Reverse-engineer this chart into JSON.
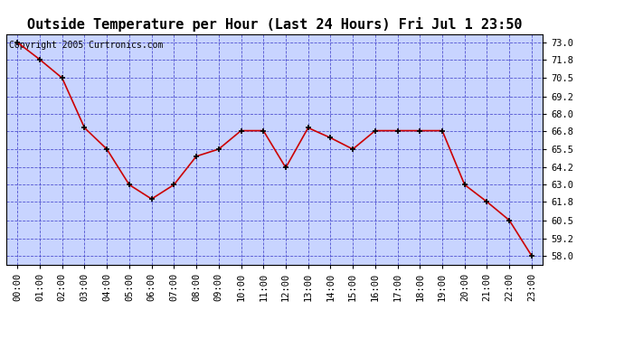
{
  "title": "Outside Temperature per Hour (Last 24 Hours) Fri Jul 1 23:50",
  "copyright_text": "Copyright 2005 Curtronics.com",
  "hours": [
    0,
    1,
    2,
    3,
    4,
    5,
    6,
    7,
    8,
    9,
    10,
    11,
    12,
    13,
    14,
    15,
    16,
    17,
    18,
    19,
    20,
    21,
    22,
    23
  ],
  "x_labels": [
    "00:00",
    "01:00",
    "02:00",
    "03:00",
    "04:00",
    "05:00",
    "06:00",
    "07:00",
    "08:00",
    "09:00",
    "10:00",
    "11:00",
    "12:00",
    "13:00",
    "14:00",
    "15:00",
    "16:00",
    "17:00",
    "18:00",
    "19:00",
    "20:00",
    "21:00",
    "22:00",
    "23:00"
  ],
  "temps": [
    73.0,
    71.8,
    70.5,
    67.0,
    65.5,
    63.0,
    62.0,
    63.0,
    65.0,
    65.5,
    66.8,
    66.8,
    64.2,
    67.0,
    66.3,
    65.5,
    66.8,
    66.8,
    66.8,
    66.8,
    63.0,
    61.8,
    60.5,
    58.0
  ],
  "line_color": "#cc0000",
  "marker_color": "#000000",
  "fig_bg_color": "#ffffff",
  "plot_bg_color": "#c8d4ff",
  "grid_color": "#4444cc",
  "title_color": "#000000",
  "border_color": "#000000",
  "text_color": "#000000",
  "ylim_min": 57.4,
  "ylim_max": 73.6,
  "yticks": [
    58.0,
    59.2,
    60.5,
    61.8,
    63.0,
    64.2,
    65.5,
    66.8,
    68.0,
    69.2,
    70.5,
    71.8,
    73.0
  ],
  "title_fontsize": 11,
  "tick_fontsize": 7.5,
  "copyright_fontsize": 7
}
